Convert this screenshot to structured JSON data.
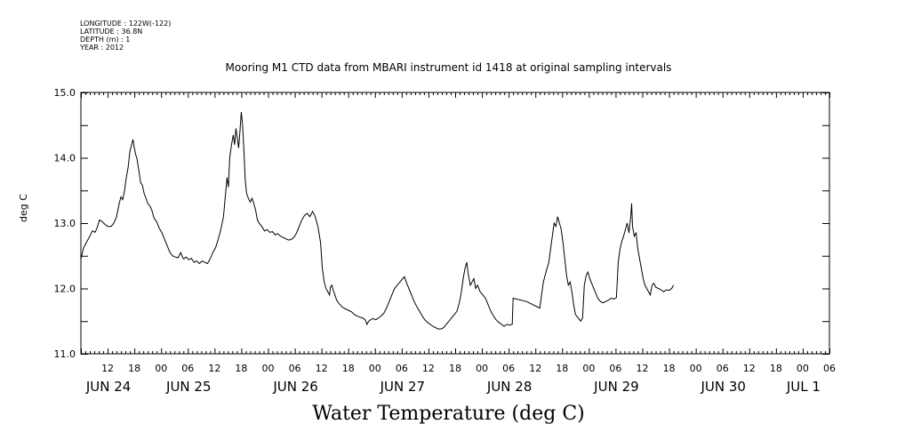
{
  "meta": {
    "longitude": "LONGITUDE : 122W(-122)",
    "latitude": "LATITUDE : 36.8N",
    "depth": "DEPTH (m) : 1",
    "year": "YEAR : 2012"
  },
  "chart_data": {
    "type": "line",
    "title": "Mooring M1 CTD data from MBARI instrument id 1418 at original sampling intervals",
    "xlabel": "Water Temperature (deg C)",
    "ylabel": "deg C",
    "ylim": [
      11.0,
      15.0
    ],
    "yticks": [
      "11.0",
      "12.0",
      "13.0",
      "14.0",
      "15.0"
    ],
    "xlim_hours": [
      0,
      168
    ],
    "hour_ticks": [
      {
        "h": 6,
        "label": "12"
      },
      {
        "h": 12,
        "label": "18"
      },
      {
        "h": 18,
        "label": "00"
      },
      {
        "h": 24,
        "label": "06"
      },
      {
        "h": 30,
        "label": "12"
      },
      {
        "h": 36,
        "label": "18"
      },
      {
        "h": 42,
        "label": "00"
      },
      {
        "h": 48,
        "label": "06"
      },
      {
        "h": 54,
        "label": "12"
      },
      {
        "h": 60,
        "label": "18"
      },
      {
        "h": 66,
        "label": "00"
      },
      {
        "h": 72,
        "label": "06"
      },
      {
        "h": 78,
        "label": "12"
      },
      {
        "h": 84,
        "label": "18"
      },
      {
        "h": 90,
        "label": "00"
      },
      {
        "h": 96,
        "label": "06"
      },
      {
        "h": 102,
        "label": "12"
      },
      {
        "h": 108,
        "label": "18"
      },
      {
        "h": 114,
        "label": "00"
      },
      {
        "h": 120,
        "label": "06"
      },
      {
        "h": 126,
        "label": "12"
      },
      {
        "h": 132,
        "label": "18"
      },
      {
        "h": 138,
        "label": "00"
      },
      {
        "h": 144,
        "label": "06"
      },
      {
        "h": 150,
        "label": "12"
      },
      {
        "h": 156,
        "label": "18"
      },
      {
        "h": 162,
        "label": "00"
      },
      {
        "h": 168,
        "label": "06"
      }
    ],
    "day_labels": [
      {
        "h": 6,
        "label": "JUN 24"
      },
      {
        "h": 24,
        "label": "JUN 25"
      },
      {
        "h": 48,
        "label": "JUN 26"
      },
      {
        "h": 72,
        "label": "JUN 27"
      },
      {
        "h": 96,
        "label": "JUN 28"
      },
      {
        "h": 120,
        "label": "JUN 29"
      },
      {
        "h": 144,
        "label": "JUN 30"
      },
      {
        "h": 162,
        "label": "JUL  1"
      }
    ],
    "series": [
      {
        "points": [
          [
            0,
            12.45
          ],
          [
            0.6,
            12.62
          ],
          [
            1.2,
            12.7
          ],
          [
            2,
            12.8
          ],
          [
            2.6,
            12.88
          ],
          [
            3.2,
            12.86
          ],
          [
            3.6,
            12.92
          ],
          [
            4.2,
            13.05
          ],
          [
            4.8,
            13.02
          ],
          [
            5.4,
            12.98
          ],
          [
            6,
            12.95
          ],
          [
            6.8,
            12.95
          ],
          [
            7.4,
            13.0
          ],
          [
            8,
            13.1
          ],
          [
            8.6,
            13.3
          ],
          [
            9,
            13.4
          ],
          [
            9.4,
            13.36
          ],
          [
            9.8,
            13.5
          ],
          [
            10.2,
            13.7
          ],
          [
            10.6,
            13.85
          ],
          [
            11,
            14.1
          ],
          [
            11.4,
            14.2
          ],
          [
            11.7,
            14.28
          ],
          [
            12,
            14.15
          ],
          [
            12.3,
            14.05
          ],
          [
            12.6,
            13.98
          ],
          [
            13,
            13.8
          ],
          [
            13.4,
            13.62
          ],
          [
            13.8,
            13.58
          ],
          [
            14.2,
            13.45
          ],
          [
            14.6,
            13.38
          ],
          [
            15,
            13.3
          ],
          [
            15.6,
            13.25
          ],
          [
            16,
            13.18
          ],
          [
            16.4,
            13.08
          ],
          [
            17,
            13.02
          ],
          [
            17.6,
            12.92
          ],
          [
            18.2,
            12.85
          ],
          [
            18.8,
            12.75
          ],
          [
            19.4,
            12.65
          ],
          [
            20,
            12.55
          ],
          [
            20.6,
            12.5
          ],
          [
            21.2,
            12.48
          ],
          [
            21.8,
            12.47
          ],
          [
            22.4,
            12.55
          ],
          [
            23,
            12.45
          ],
          [
            23.6,
            12.48
          ],
          [
            24.2,
            12.44
          ],
          [
            24.8,
            12.46
          ],
          [
            25.4,
            12.4
          ],
          [
            26,
            12.42
          ],
          [
            26.6,
            12.38
          ],
          [
            27.2,
            12.42
          ],
          [
            27.8,
            12.4
          ],
          [
            28.4,
            12.38
          ],
          [
            29,
            12.45
          ],
          [
            29.6,
            12.55
          ],
          [
            30.2,
            12.62
          ],
          [
            30.8,
            12.75
          ],
          [
            31.4,
            12.9
          ],
          [
            32,
            13.1
          ],
          [
            32.4,
            13.4
          ],
          [
            32.8,
            13.7
          ],
          [
            33.1,
            13.55
          ],
          [
            33.4,
            14.0
          ],
          [
            33.8,
            14.2
          ],
          [
            34.2,
            14.35
          ],
          [
            34.5,
            14.2
          ],
          [
            34.8,
            14.45
          ],
          [
            35.1,
            14.3
          ],
          [
            35.4,
            14.15
          ],
          [
            35.7,
            14.4
          ],
          [
            36,
            14.7
          ],
          [
            36.3,
            14.5
          ],
          [
            36.6,
            14.1
          ],
          [
            36.9,
            13.65
          ],
          [
            37.2,
            13.45
          ],
          [
            37.6,
            13.38
          ],
          [
            38,
            13.32
          ],
          [
            38.4,
            13.38
          ],
          [
            38.8,
            13.3
          ],
          [
            39.2,
            13.2
          ],
          [
            39.6,
            13.05
          ],
          [
            40,
            13.0
          ],
          [
            40.6,
            12.95
          ],
          [
            41.2,
            12.88
          ],
          [
            41.8,
            12.9
          ],
          [
            42.4,
            12.86
          ],
          [
            43,
            12.87
          ],
          [
            43.6,
            12.82
          ],
          [
            44.2,
            12.84
          ],
          [
            44.8,
            12.8
          ],
          [
            45.4,
            12.78
          ],
          [
            46,
            12.76
          ],
          [
            46.6,
            12.74
          ],
          [
            47.2,
            12.75
          ],
          [
            47.8,
            12.78
          ],
          [
            48.4,
            12.85
          ],
          [
            49,
            12.95
          ],
          [
            49.6,
            13.05
          ],
          [
            50.2,
            13.12
          ],
          [
            50.8,
            13.15
          ],
          [
            51.4,
            13.1
          ],
          [
            52,
            13.18
          ],
          [
            52.6,
            13.1
          ],
          [
            53.2,
            12.95
          ],
          [
            53.8,
            12.7
          ],
          [
            54.2,
            12.3
          ],
          [
            54.6,
            12.1
          ],
          [
            55,
            12.0
          ],
          [
            55.4,
            11.95
          ],
          [
            55.8,
            11.9
          ],
          [
            56,
            12.02
          ],
          [
            56.3,
            12.05
          ],
          [
            56.6,
            11.98
          ],
          [
            57,
            11.9
          ],
          [
            57.4,
            11.82
          ],
          [
            57.8,
            11.78
          ],
          [
            58.2,
            11.75
          ],
          [
            58.6,
            11.72
          ],
          [
            59,
            11.7
          ],
          [
            59.6,
            11.68
          ],
          [
            60.2,
            11.66
          ],
          [
            60.8,
            11.64
          ],
          [
            61.4,
            11.6
          ],
          [
            62,
            11.58
          ],
          [
            62.6,
            11.56
          ],
          [
            63.2,
            11.55
          ],
          [
            63.8,
            11.52
          ],
          [
            64.2,
            11.45
          ],
          [
            64.6,
            11.5
          ],
          [
            65,
            11.52
          ],
          [
            65.6,
            11.54
          ],
          [
            66.2,
            11.52
          ],
          [
            66.8,
            11.55
          ],
          [
            67.4,
            11.58
          ],
          [
            68,
            11.62
          ],
          [
            68.6,
            11.7
          ],
          [
            69.2,
            11.8
          ],
          [
            69.8,
            11.9
          ],
          [
            70.4,
            12.0
          ],
          [
            71,
            12.05
          ],
          [
            71.6,
            12.1
          ],
          [
            72.2,
            12.15
          ],
          [
            72.6,
            12.18
          ],
          [
            73,
            12.1
          ],
          [
            73.6,
            12.0
          ],
          [
            74.2,
            11.9
          ],
          [
            74.8,
            11.8
          ],
          [
            75.4,
            11.72
          ],
          [
            76,
            11.65
          ],
          [
            76.6,
            11.58
          ],
          [
            77.2,
            11.52
          ],
          [
            77.8,
            11.48
          ],
          [
            78.4,
            11.45
          ],
          [
            79,
            11.42
          ],
          [
            79.6,
            11.4
          ],
          [
            80.2,
            11.38
          ],
          [
            80.8,
            11.38
          ],
          [
            81.4,
            11.4
          ],
          [
            82,
            11.45
          ],
          [
            82.6,
            11.5
          ],
          [
            83.2,
            11.55
          ],
          [
            83.8,
            11.6
          ],
          [
            84.4,
            11.65
          ],
          [
            85,
            11.8
          ],
          [
            85.4,
            11.95
          ],
          [
            85.8,
            12.15
          ],
          [
            86.2,
            12.3
          ],
          [
            86.6,
            12.4
          ],
          [
            87,
            12.2
          ],
          [
            87.4,
            12.05
          ],
          [
            87.8,
            12.1
          ],
          [
            88.2,
            12.15
          ],
          [
            88.6,
            12.0
          ],
          [
            89,
            12.05
          ],
          [
            89.6,
            11.95
          ],
          [
            90.2,
            11.9
          ],
          [
            90.8,
            11.85
          ],
          [
            91.4,
            11.75
          ],
          [
            92,
            11.65
          ],
          [
            92.6,
            11.58
          ],
          [
            93.2,
            11.52
          ],
          [
            93.8,
            11.48
          ],
          [
            94.4,
            11.45
          ],
          [
            95,
            11.42
          ],
          [
            95.6,
            11.45
          ],
          [
            96.2,
            11.44
          ],
          [
            96.8,
            11.45
          ],
          [
            97,
            11.85
          ],
          [
            100,
            11.8
          ],
          [
            103,
            11.7
          ],
          [
            103.4,
            11.9
          ],
          [
            103.8,
            12.1
          ],
          [
            104.2,
            12.2
          ],
          [
            104.6,
            12.3
          ],
          [
            105,
            12.4
          ],
          [
            105.4,
            12.6
          ],
          [
            105.8,
            12.8
          ],
          [
            106.2,
            13.0
          ],
          [
            106.6,
            12.95
          ],
          [
            107,
            13.1
          ],
          [
            107.4,
            13.0
          ],
          [
            107.8,
            12.9
          ],
          [
            108.2,
            12.7
          ],
          [
            108.6,
            12.45
          ],
          [
            109,
            12.2
          ],
          [
            109.4,
            12.05
          ],
          [
            109.8,
            12.1
          ],
          [
            110.2,
            11.95
          ],
          [
            110.6,
            11.75
          ],
          [
            111,
            11.6
          ],
          [
            111.6,
            11.55
          ],
          [
            112.2,
            11.5
          ],
          [
            112.6,
            11.55
          ],
          [
            113,
            12.05
          ],
          [
            113.4,
            12.2
          ],
          [
            113.8,
            12.25
          ],
          [
            114.2,
            12.15
          ],
          [
            114.8,
            12.05
          ],
          [
            115.4,
            11.95
          ],
          [
            116,
            11.85
          ],
          [
            116.6,
            11.8
          ],
          [
            117.2,
            11.78
          ],
          [
            117.8,
            11.8
          ],
          [
            118.4,
            11.82
          ],
          [
            119,
            11.85
          ],
          [
            119.6,
            11.84
          ],
          [
            120.2,
            11.86
          ],
          [
            120.6,
            12.4
          ],
          [
            121,
            12.6
          ],
          [
            121.4,
            12.72
          ],
          [
            121.8,
            12.8
          ],
          [
            122.2,
            12.9
          ],
          [
            122.6,
            13.0
          ],
          [
            123,
            12.85
          ],
          [
            123.4,
            13.1
          ],
          [
            123.6,
            13.3
          ],
          [
            123.8,
            12.95
          ],
          [
            124.2,
            12.8
          ],
          [
            124.6,
            12.85
          ],
          [
            125,
            12.6
          ],
          [
            125.4,
            12.45
          ],
          [
            125.8,
            12.3
          ],
          [
            126.2,
            12.15
          ],
          [
            126.6,
            12.05
          ],
          [
            127,
            12.0
          ],
          [
            127.4,
            11.95
          ],
          [
            127.8,
            11.9
          ],
          [
            128.2,
            12.05
          ],
          [
            128.6,
            12.08
          ],
          [
            129,
            12.02
          ],
          [
            129.6,
            12.0
          ],
          [
            130.2,
            11.98
          ],
          [
            130.8,
            11.95
          ],
          [
            131.4,
            11.98
          ],
          [
            132,
            11.97
          ],
          [
            132.6,
            12.0
          ],
          [
            133,
            12.05
          ]
        ]
      }
    ]
  }
}
